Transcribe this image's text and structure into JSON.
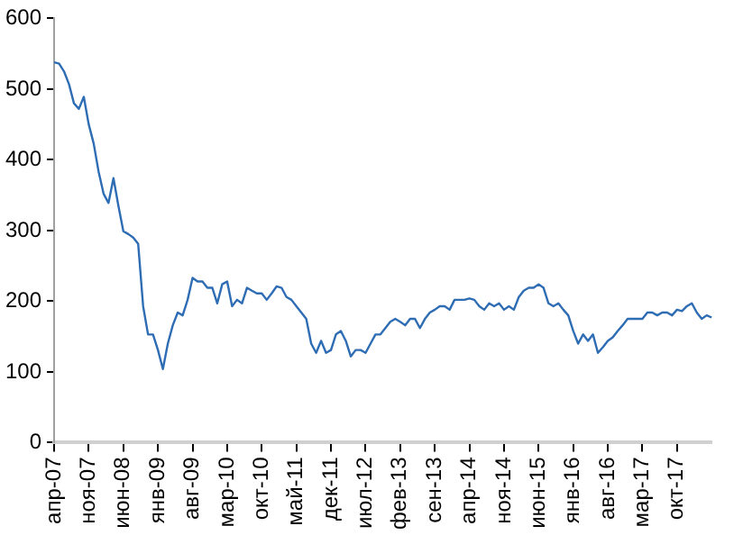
{
  "chart_data": {
    "type": "line",
    "categories": [
      "апр-07",
      null,
      null,
      null,
      null,
      null,
      null,
      "ноя-07",
      null,
      null,
      null,
      null,
      null,
      null,
      "июн-08",
      null,
      null,
      null,
      null,
      null,
      null,
      "янв-09",
      null,
      null,
      null,
      null,
      null,
      null,
      "авг-09",
      null,
      null,
      null,
      null,
      null,
      null,
      "мар-10",
      null,
      null,
      null,
      null,
      null,
      null,
      "окт-10",
      null,
      null,
      null,
      null,
      null,
      null,
      "май-11",
      null,
      null,
      null,
      null,
      null,
      null,
      "дек-11",
      null,
      null,
      null,
      null,
      null,
      null,
      "июл-12",
      null,
      null,
      null,
      null,
      null,
      null,
      "фев-13",
      null,
      null,
      null,
      null,
      null,
      null,
      "сен-13",
      null,
      null,
      null,
      null,
      null,
      null,
      "апр-14",
      null,
      null,
      null,
      null,
      null,
      null,
      "ноя-14",
      null,
      null,
      null,
      null,
      null,
      null,
      "июн-15",
      null,
      null,
      null,
      null,
      null,
      null,
      "янв-16",
      null,
      null,
      null,
      null,
      null,
      null,
      "авг-16",
      null,
      null,
      null,
      null,
      null,
      null,
      "мар-17",
      null,
      null,
      null,
      null,
      null,
      null,
      "окт-17",
      null,
      null,
      null,
      null,
      null,
      null,
      null
    ],
    "series": [
      {
        "color": "#2e6db4",
        "values": [
          538,
          536,
          525,
          507,
          480,
          472,
          489,
          450,
          423,
          383,
          352,
          339,
          374,
          335,
          299,
          295,
          290,
          281,
          193,
          153,
          153,
          131,
          104,
          140,
          166,
          184,
          180,
          202,
          233,
          228,
          228,
          219,
          219,
          197,
          224,
          228,
          193,
          202,
          197,
          219,
          215,
          211,
          211,
          202,
          211,
          221,
          219,
          206,
          202,
          193,
          184,
          175,
          140,
          127,
          144,
          127,
          131,
          153,
          158,
          144,
          122,
          131,
          131,
          127,
          140,
          153,
          153,
          162,
          171,
          175,
          171,
          166,
          175,
          175,
          162,
          175,
          184,
          188,
          193,
          193,
          188,
          202,
          202,
          202,
          204,
          202,
          193,
          188,
          197,
          193,
          197,
          188,
          193,
          188,
          206,
          215,
          219,
          219,
          224,
          219,
          197,
          193,
          197,
          188,
          180,
          158,
          140,
          153,
          144,
          153,
          127,
          135,
          144,
          149,
          158,
          166,
          175,
          175,
          175,
          175,
          184,
          184,
          180,
          184,
          184,
          180,
          188,
          186,
          193,
          197,
          184,
          175,
          180,
          177
        ]
      }
    ],
    "ylim": [
      0,
      600
    ],
    "yticks": [
      0,
      100,
      200,
      300,
      400,
      500,
      600
    ],
    "grid": false,
    "legend": false,
    "marker": "none",
    "line_style": "solid"
  }
}
